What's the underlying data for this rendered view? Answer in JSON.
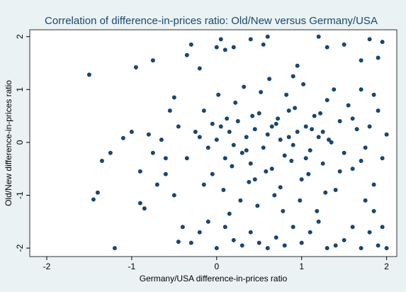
{
  "chart_data": {
    "type": "scatter",
    "title": "Correlation of difference-in-prices ratio: Old/New versus Germany/USA",
    "x_label": "Germany/USA difference-in-prices ratio",
    "y_label": "Old/New difference-in-prices ratio",
    "color": "#1a476f",
    "xlim": [
      -2.2,
      2.12
    ],
    "ylim": [
      -2.16,
      2.13
    ],
    "xticks": [
      -2,
      -1,
      0,
      1,
      2
    ],
    "yticks": [
      -2,
      -1,
      0,
      1,
      2
    ],
    "grid": false,
    "x": [
      -1.5,
      -0.95,
      -0.75,
      -1.45,
      -1.2,
      -1.4,
      -1.35,
      -1.25,
      -1.1,
      -1.0,
      -0.9,
      -0.85,
      -0.8,
      -0.65,
      -0.55,
      -0.5,
      -0.45,
      -0.4,
      -0.35,
      -0.3,
      -0.2,
      0,
      0.05,
      0.1,
      0.2,
      0.4,
      0.55,
      0.6,
      0.9,
      0.95,
      1.2,
      1.3,
      1.5,
      1.7,
      1.8,
      1.95,
      1.9,
      -0.7,
      -0.6,
      -0.5,
      -0.3,
      -0.2,
      -0.1,
      0,
      0.1,
      0.2,
      0.3,
      0.4,
      0.5,
      0.6,
      0.7,
      0.8,
      0.9,
      1.0,
      1.1,
      1.2,
      1.3,
      1.4,
      1.5,
      1.6,
      1.7,
      1.8,
      1.9,
      1.95,
      2.0,
      1.85,
      1.75,
      -0.2,
      -0.1,
      0,
      0.05,
      0.1,
      0.15,
      0.2,
      0.25,
      0.3,
      0.35,
      0.4,
      0.45,
      0.5,
      0.55,
      0.6,
      0.65,
      0.7,
      0.75,
      0.8,
      0.85,
      0.9,
      0.95,
      1.0,
      1.05,
      1.1,
      1.15,
      1.2,
      1.25,
      1.3,
      1.35,
      1.4,
      1.45,
      1.5,
      1.55,
      1.6,
      1.65,
      1.7,
      1.75,
      1.8,
      1.85,
      1.9,
      1.95,
      2.0,
      -0.15,
      -0.05,
      0.02,
      0.08,
      0.12,
      0.18,
      0.22,
      0.28,
      0.32,
      0.38,
      0.42,
      0.48,
      0.52,
      0.58,
      0.62,
      0.68,
      0.72,
      0.78,
      0.82,
      0.88,
      0.92,
      0.98,
      1.02,
      1.08,
      1.12,
      1.18,
      1.22,
      1.28,
      1.32,
      1.38,
      -0.9,
      -0.75,
      -0.6,
      -0.45,
      -0.35,
      -0.25,
      -0.15,
      -0.05,
      0.15,
      0.35,
      0.45,
      0.65,
      0.75,
      0.85,
      1.05,
      1.25,
      1.45,
      1.6,
      1.7,
      1.85
    ],
    "values": [
      1.28,
      1.42,
      1.55,
      -1.08,
      -2,
      -0.95,
      -0.35,
      -0.2,
      0.08,
      0.2,
      -1.15,
      -1.25,
      0.15,
      0.05,
      0.6,
      0.85,
      -1.88,
      -1.6,
      1.65,
      1.85,
      1.4,
      1.8,
      1.95,
      1.75,
      1.8,
      1.95,
      1.85,
      2,
      1.25,
      1.45,
      2,
      1.8,
      1.85,
      1.55,
      1.95,
      1.9,
      1.6,
      -0.8,
      -0.3,
      -1.0,
      -1.9,
      -1.7,
      -1.5,
      -2,
      -1.6,
      -1.85,
      -1.95,
      -1.7,
      -1.9,
      -2,
      -1.8,
      -1.95,
      -1.6,
      -1.9,
      -1.7,
      -1.5,
      -2,
      -1.95,
      -1.85,
      -1.6,
      -2,
      -1.7,
      -1.95,
      -1.6,
      -2,
      -1.3,
      -1.1,
      0.1,
      -0.1,
      0.05,
      0.3,
      -0.3,
      0.2,
      -0.05,
      0.4,
      -0.2,
      0.1,
      -0.4,
      0.25,
      0.55,
      -0.1,
      0.15,
      -0.5,
      0.35,
      0.05,
      -0.25,
      0.6,
      -0.05,
      0.2,
      -0.7,
      0.3,
      -0.15,
      0.5,
      0.1,
      -0.4,
      0.8,
      0,
      -0.9,
      0.4,
      -0.2,
      0.7,
      -0.5,
      0.25,
      1.0,
      -0.1,
      0.3,
      -0.8,
      0.6,
      -0.3,
      0.15,
      0.6,
      -0.6,
      0.9,
      -0.9,
      0.45,
      -0.45,
      0.75,
      -1.1,
      1.05,
      -0.75,
      0.5,
      -1.2,
      0.95,
      -0.55,
      1.2,
      -1.0,
      0.45,
      -1.3,
      0.9,
      -0.35,
      0.65,
      -1.1,
      1.1,
      -0.6,
      0.25,
      -1.3,
      0.55,
      -0.95,
      0.05,
      1.0,
      -0.55,
      -0.2,
      -0.6,
      0.3,
      -0.3,
      0.2,
      -0.8,
      0.35,
      -1.35,
      -0.15,
      -0.7,
      0.3,
      -0.85,
      0.1,
      -0.3,
      0.2,
      -0.55,
      0.45,
      -0.35,
      0.9
    ]
  }
}
